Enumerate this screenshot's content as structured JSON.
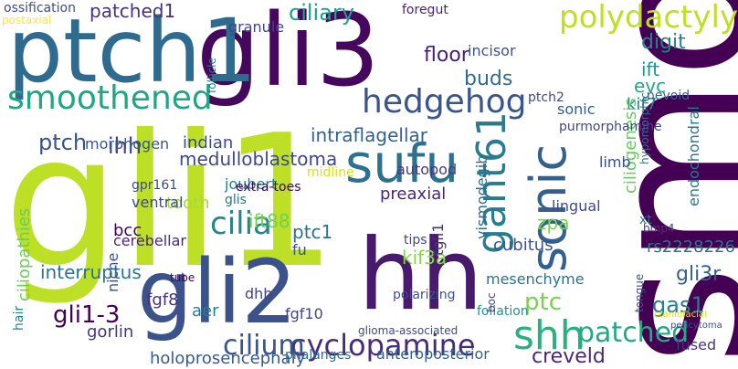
{
  "word_cloud": {
    "background": "#ffffff",
    "words": [
      {
        "text": "smo",
        "color": "#440154"
      },
      {
        "text": "gli1",
        "color": "#bddf26"
      },
      {
        "text": "gli3",
        "color": "#46085c"
      },
      {
        "text": "ptch1",
        "color": "#2e6b8e"
      },
      {
        "text": "gli2",
        "color": "#3b528b"
      },
      {
        "text": "hh",
        "color": "#481a6c"
      },
      {
        "text": "smoothened",
        "color": "#21a685"
      },
      {
        "text": "sufu",
        "color": "#2c728e"
      },
      {
        "text": "gant61",
        "color": "#297b8e"
      },
      {
        "text": "sonic",
        "color": "#34608d"
      },
      {
        "text": "shh",
        "color": "#2ab07f"
      },
      {
        "text": "cilia",
        "color": "#25858e"
      },
      {
        "text": "hedgehog",
        "color": "#39558c"
      },
      {
        "text": "cyclopamine",
        "color": "#472c7a"
      },
      {
        "text": "polydactyly",
        "color": "#bddf26"
      },
      {
        "text": "patched",
        "color": "#23a983"
      },
      {
        "text": "ciliary",
        "color": "#1fa188"
      },
      {
        "text": "cilium",
        "color": "#39558c"
      },
      {
        "text": "patched1",
        "color": "#46337f"
      },
      {
        "text": "ptch",
        "color": "#3b528b"
      },
      {
        "text": "ihh",
        "color": "#3e4989"
      },
      {
        "text": "morphogen",
        "color": "#39568c"
      },
      {
        "text": "medulloblastoma",
        "color": "#3f4889"
      },
      {
        "text": "intraflagellar",
        "color": "#34618d"
      },
      {
        "text": "floor",
        "color": "#481f70"
      },
      {
        "text": "buds",
        "color": "#2f6c8e"
      },
      {
        "text": "digit",
        "color": "#26818e"
      },
      {
        "text": "ift",
        "color": "#1f958b"
      },
      {
        "text": "evc",
        "color": "#22a785"
      },
      {
        "text": "kif7",
        "color": "#24868e"
      },
      {
        "text": "gli1-3",
        "color": "#440154"
      },
      {
        "text": "gorlin",
        "color": "#453781"
      },
      {
        "text": "interruptus",
        "color": "#2b748e"
      },
      {
        "text": "ciliopathies",
        "color": "#6ccd5a"
      },
      {
        "text": "ift88",
        "color": "#73d056"
      },
      {
        "text": "indian",
        "color": "#3e4989"
      },
      {
        "text": "gas1",
        "color": "#287c8e"
      },
      {
        "text": "gli3r",
        "color": "#34618d"
      },
      {
        "text": "creveld",
        "color": "#482878"
      },
      {
        "text": "ptc",
        "color": "#7ad151"
      },
      {
        "text": "ptc1",
        "color": "#2c728e"
      },
      {
        "text": "zpa",
        "color": "#7ad151"
      },
      {
        "text": "preaxial",
        "color": "#482576"
      },
      {
        "text": "autopod",
        "color": "#453882"
      },
      {
        "text": "kif3a",
        "color": "#86d549"
      },
      {
        "text": "vismodegib",
        "color": "#2e6d8e"
      },
      {
        "text": "ciliogenesis",
        "color": "#65cb5e"
      },
      {
        "text": "cubitus",
        "color": "#3b528b"
      },
      {
        "text": "fgf8",
        "color": "#46327e"
      },
      {
        "text": "aer",
        "color": "#287d8e"
      },
      {
        "text": "dhh",
        "color": "#414487"
      },
      {
        "text": "fgf10",
        "color": "#3f4788"
      },
      {
        "text": "bcc",
        "color": "#440154"
      },
      {
        "text": "tooth",
        "color": "#a8db34"
      },
      {
        "text": "holoprosencephaly",
        "color": "#365c8d"
      },
      {
        "text": "phalanges",
        "color": "#31688e"
      },
      {
        "text": "anteroposterior",
        "color": "#33638d"
      },
      {
        "text": "mesenchyme",
        "color": "#2d708e"
      },
      {
        "text": "foliation",
        "color": "#1f958b"
      },
      {
        "text": "tips",
        "color": "#404688"
      },
      {
        "text": "fu",
        "color": "#3a538b"
      },
      {
        "text": "niche",
        "color": "#3c508b"
      },
      {
        "text": "fused",
        "color": "#453882"
      },
      {
        "text": "sonic",
        "color": "#34608d"
      },
      {
        "text": "purmorphamine",
        "color": "#3f4788"
      },
      {
        "text": "limb",
        "color": "#3b518b"
      },
      {
        "text": "lingual",
        "color": "#3e4a89"
      },
      {
        "text": "rs2228226",
        "color": "#2d708e"
      },
      {
        "text": "endochondral",
        "color": "#2a768e"
      },
      {
        "text": "nevoid",
        "color": "#32658e"
      },
      {
        "text": "ptch2",
        "color": "#3e4989"
      },
      {
        "text": "joubert",
        "color": "#287d8e"
      },
      {
        "text": "glis",
        "color": "#2d708e"
      },
      {
        "text": "extra-toes",
        "color": "#440154"
      },
      {
        "text": "ventral",
        "color": "#3f4889"
      },
      {
        "text": "cerebellar",
        "color": "#482979"
      },
      {
        "text": "gpr161",
        "color": "#3e4989"
      },
      {
        "text": "granule",
        "color": "#404588"
      },
      {
        "text": "incisor",
        "color": "#3b528b"
      },
      {
        "text": "foregut",
        "color": "#482475"
      },
      {
        "text": "follicle",
        "color": "#2a788e"
      },
      {
        "text": "ossification",
        "color": "#3e4a89"
      },
      {
        "text": "postaxial",
        "color": "#fde725"
      },
      {
        "text": "hair",
        "color": "#26828e"
      },
      {
        "text": "midline",
        "color": "#d2e21b"
      },
      {
        "text": "tube",
        "color": "#440154"
      },
      {
        "text": "polarizing",
        "color": "#3a548c"
      },
      {
        "text": "tgli1",
        "color": "#46327e"
      },
      {
        "text": "glioma-associated",
        "color": "#3e4a89"
      },
      {
        "text": "boc",
        "color": "#414487"
      },
      {
        "text": "xt",
        "color": "#2a788e"
      },
      {
        "text": "bmp4",
        "color": "#453781"
      },
      {
        "text": "tongue",
        "color": "#3b528b"
      },
      {
        "text": "hypomorphic",
        "color": "#2d708e"
      },
      {
        "text": "craniofacial",
        "color": "#d8e219"
      },
      {
        "text": "pericytoma",
        "color": "#3e4a89"
      }
    ]
  }
}
